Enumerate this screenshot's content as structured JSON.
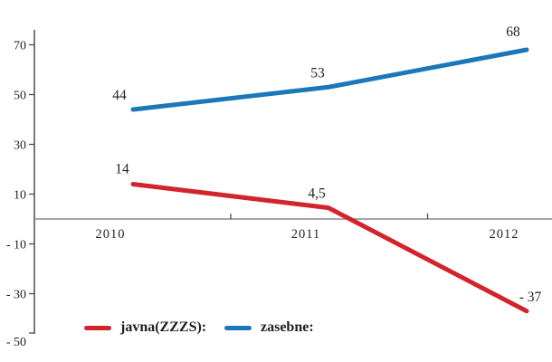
{
  "chart_data": {
    "type": "line",
    "title": "",
    "categories": [
      "2010",
      "2011",
      "2012"
    ],
    "series": [
      {
        "name": "javna(ZZZS):",
        "values": [
          14,
          4.5,
          -37
        ],
        "value_labels": [
          "14",
          "4,5",
          "- 37"
        ],
        "color": "#d3242b"
      },
      {
        "name": "zasebne:",
        "values": [
          44,
          53,
          68
        ],
        "value_labels": [
          "44",
          "53",
          "68"
        ],
        "color": "#1a78ba"
      }
    ],
    "y_axis": {
      "ticks": [
        70,
        50,
        30,
        10,
        -10,
        -30,
        -50
      ],
      "tick_labels": [
        "70",
        "50",
        "30",
        "10",
        "- 10",
        "- 30",
        "- 50"
      ],
      "ylim": [
        -50,
        70
      ]
    },
    "x_axis": {
      "tick_style": "between-categories",
      "zero_baseline": true
    },
    "legend": {
      "position": "bottom",
      "entries": [
        "javna(ZZZS):",
        "zasebne:"
      ]
    },
    "grid": false,
    "colors": {
      "axis": "#4d4d4f",
      "zero_line": "#87898c",
      "text": "#231f20"
    }
  }
}
